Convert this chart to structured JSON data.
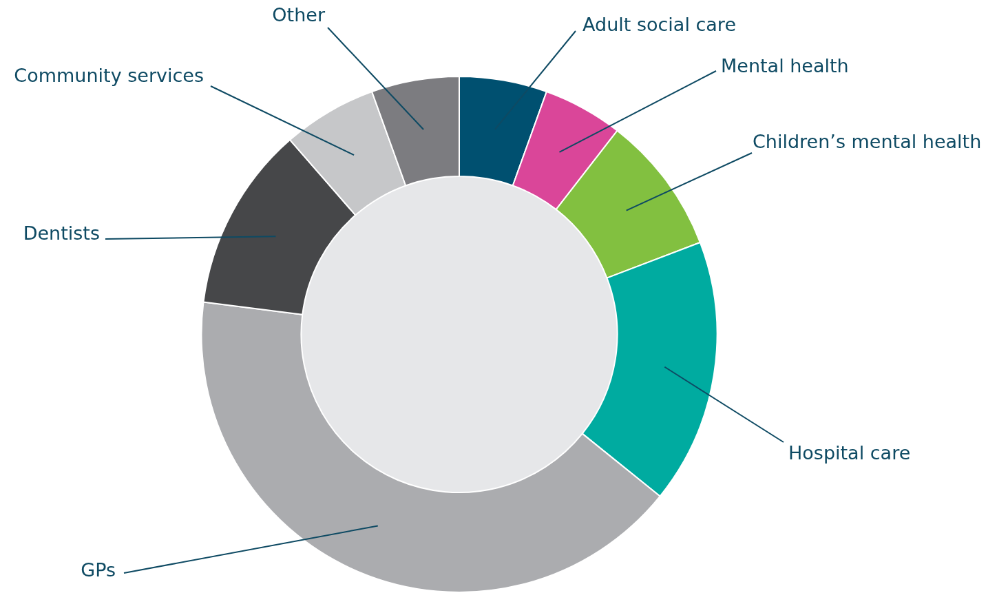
{
  "chart_data": {
    "type": "donut",
    "categories": [
      "Adult social care",
      "Mental health",
      "Children’s mental health",
      "Hospital care",
      "GPs",
      "Dentists",
      "Community services",
      "Other"
    ],
    "values": [
      5.5,
      5.0,
      8.7,
      16.6,
      41.2,
      11.6,
      5.9,
      5.5
    ],
    "colors": [
      "#005070",
      "#da4699",
      "#82c040",
      "#00aba0",
      "#abacaf",
      "#464749",
      "#c6c7c9",
      "#7c7c80"
    ],
    "legend": false
  }
}
